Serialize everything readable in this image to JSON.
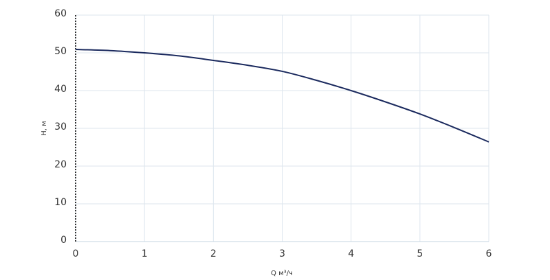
{
  "chart_data": {
    "type": "line",
    "x_label": "Q м³/ч",
    "y_label": "H, м",
    "x": [
      0,
      0.5,
      1,
      1.5,
      2,
      2.5,
      3,
      3.5,
      4,
      4.5,
      5,
      5.5,
      6
    ],
    "series": [
      {
        "color": "#1b2a5e",
        "values": [
          50.9,
          50.6,
          50.0,
          49.2,
          48.0,
          46.7,
          45.1,
          42.7,
          40.0,
          37.0,
          33.8,
          30.2,
          26.4
        ]
      }
    ],
    "xlim": [
      0,
      6
    ],
    "xticks": [
      0,
      1,
      2,
      3,
      4,
      5,
      6
    ],
    "ylim": [
      0,
      60
    ],
    "yticks": [
      0,
      10,
      20,
      30,
      40,
      50,
      60
    ],
    "grid": true
  }
}
